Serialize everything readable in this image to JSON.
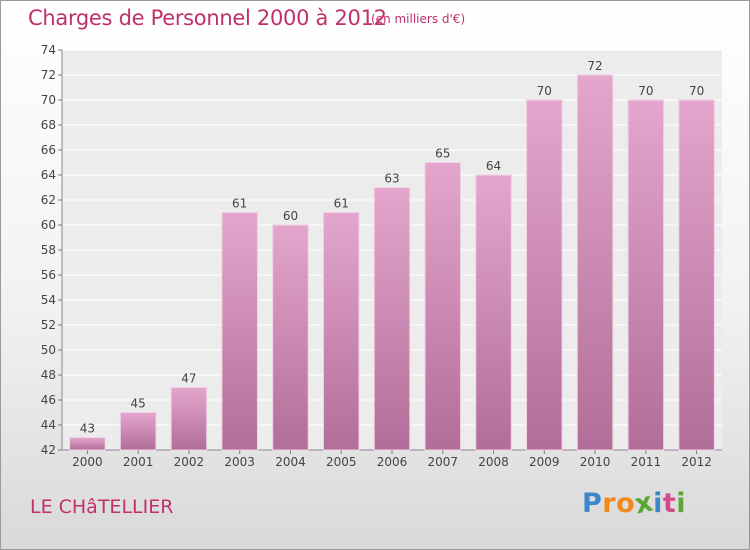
{
  "title": "Charges de Personnel 2000 à 2012",
  "subtitle": "(en milliers d'€)",
  "commune": "LE CHâTELLIER",
  "logo": {
    "letters": [
      "P",
      "r",
      "o",
      "x",
      "i",
      "t",
      "i"
    ],
    "colors": [
      "#3a87c9",
      "#f08a1c",
      "#f08a1c",
      "#5aa832",
      "#3a87c9",
      "#d24c8c",
      "#5aa832"
    ]
  },
  "colors": {
    "accent": "#c0306a",
    "bar_top": "#e4a6cd",
    "bar_bottom": "#b16e98"
  },
  "chart_data": {
    "type": "bar",
    "categories": [
      "2000",
      "2001",
      "2002",
      "2003",
      "2004",
      "2005",
      "2006",
      "2007",
      "2008",
      "2009",
      "2010",
      "2011",
      "2012"
    ],
    "values": [
      43,
      45,
      47,
      61,
      60,
      61,
      63,
      65,
      64,
      70,
      72,
      70,
      70
    ],
    "title": "Charges de Personnel 2000 à 2012",
    "xlabel": "",
    "ylabel": "",
    "ylim": [
      42,
      74
    ],
    "yticks": [
      42,
      44,
      46,
      48,
      50,
      52,
      54,
      56,
      58,
      60,
      62,
      64,
      66,
      68,
      70,
      72,
      74
    ],
    "grid": true,
    "data_labels": true
  }
}
